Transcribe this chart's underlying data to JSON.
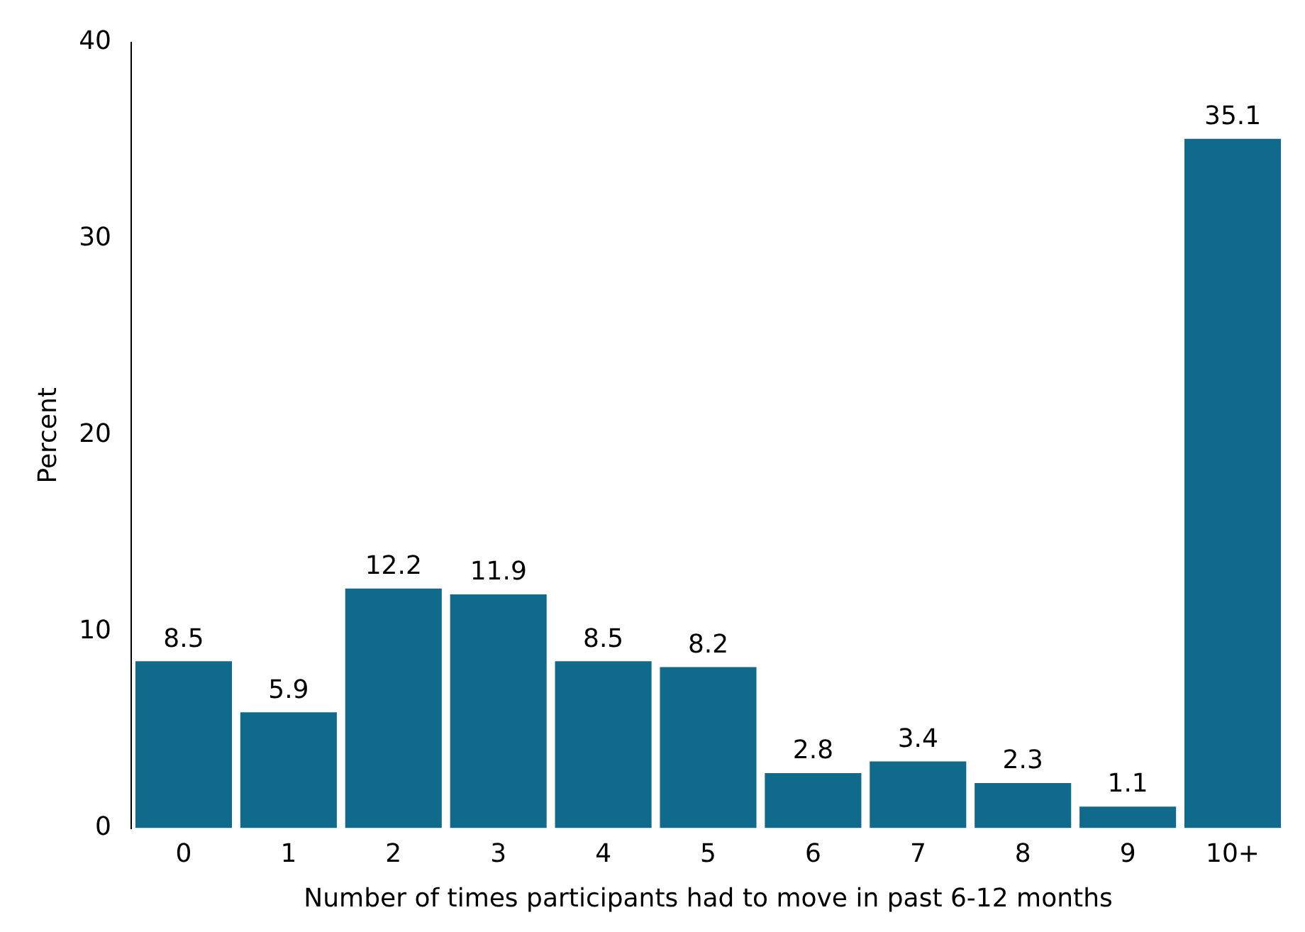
{
  "chart_data": {
    "type": "bar",
    "xlabel": "Number of times participants had to move in past 6-12 months",
    "ylabel": "Percent",
    "categories": [
      "0",
      "1",
      "2",
      "3",
      "4",
      "5",
      "6",
      "7",
      "8",
      "9",
      "10+"
    ],
    "values": [
      8.5,
      5.9,
      12.2,
      11.9,
      8.5,
      8.2,
      2.8,
      3.4,
      2.3,
      1.1,
      35.1
    ],
    "color": "#0f6a8b",
    "ylim": [
      0,
      40
    ],
    "yticks": [
      0,
      10,
      20,
      30,
      40
    ],
    "grid": false,
    "legend": false,
    "data_labels": true
  }
}
